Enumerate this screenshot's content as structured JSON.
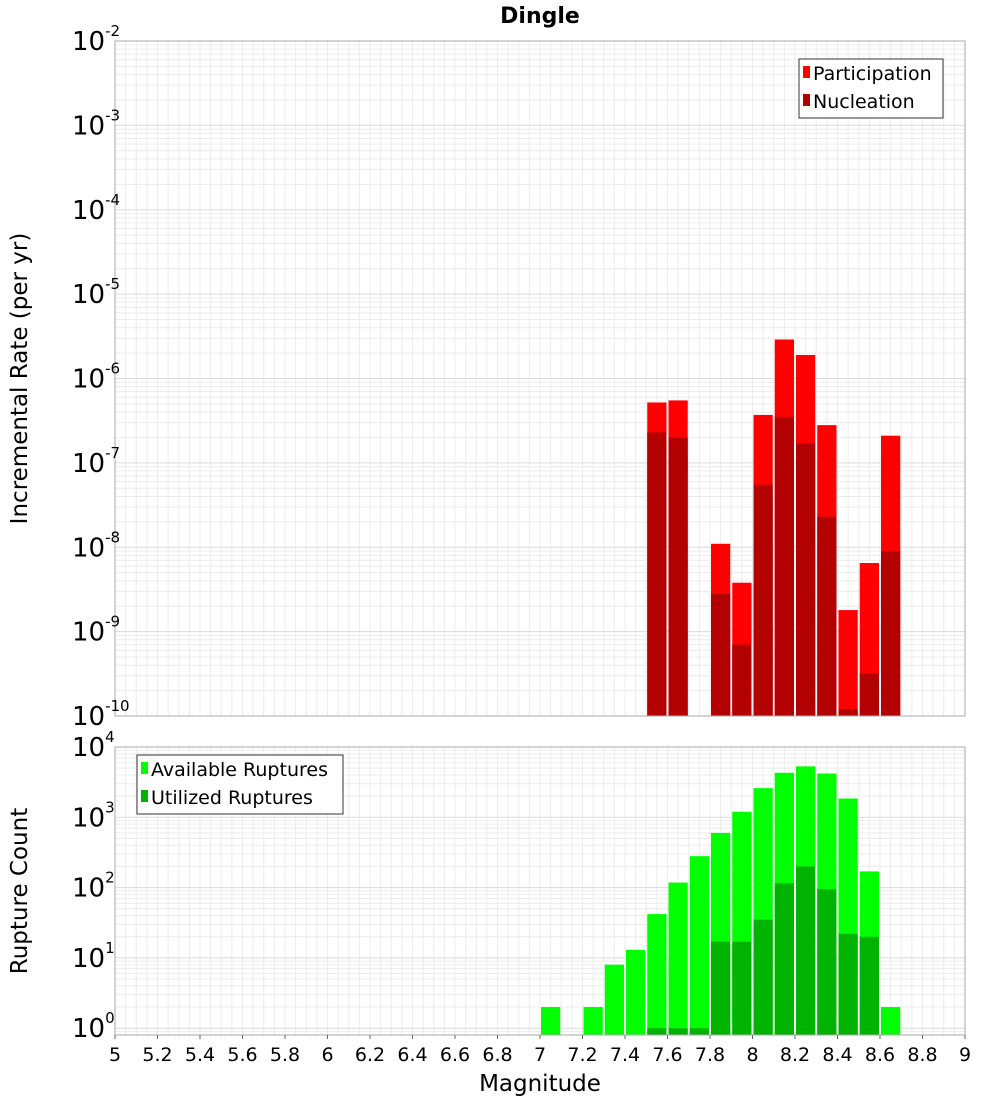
{
  "chart_data": {
    "title": "Dingle",
    "x_axis": {
      "label": "Magnitude",
      "range": [
        5,
        9
      ],
      "tick_labels": [
        "5",
        "5.2",
        "5.4",
        "5.6",
        "5.8",
        "6",
        "6.2",
        "6.4",
        "6.6",
        "6.8",
        "7",
        "7.2",
        "7.4",
        "7.6",
        "7.8",
        "8",
        "8.2",
        "8.4",
        "8.6",
        "8.8",
        "9"
      ]
    },
    "panels": [
      {
        "type": "bar",
        "y_scale": "log",
        "ylabel": "Incremental Rate (per yr)",
        "ylim": [
          1e-10,
          0.01
        ],
        "y_tick_base": "10",
        "y_tick_exponents": [
          "-10",
          "-9",
          "-8",
          "-7",
          "-6",
          "-5",
          "-4",
          "-3",
          "-2"
        ],
        "grid": true,
        "legend_position": "top-right",
        "x": [
          7.55,
          7.65,
          7.85,
          7.95,
          8.05,
          8.15,
          8.25,
          8.35,
          8.45,
          8.55,
          8.65
        ],
        "series": [
          {
            "name": "Participation",
            "color": "#ff0000",
            "values": [
              5.2e-07,
              5.5e-07,
              1.1e-08,
              3.8e-09,
              3.7e-07,
              2.9e-06,
              1.9e-06,
              2.8e-07,
              1.8e-09,
              6.5e-09,
              2.1e-07
            ]
          },
          {
            "name": "Nucleation",
            "color": "#b30000",
            "values": [
              2.3e-07,
              2e-07,
              2.8e-09,
              7e-10,
              5.5e-08,
              3.5e-07,
              1.7e-07,
              2.3e-08,
              1.2e-10,
              3.2e-10,
              9e-09
            ]
          }
        ]
      },
      {
        "type": "bar",
        "y_scale": "log",
        "ylabel": "Rupture Count",
        "ylim": [
          0.8,
          10000
        ],
        "y_tick_base": "10",
        "y_tick_exponents": [
          "0",
          "1",
          "2",
          "3",
          "4"
        ],
        "grid": true,
        "legend_position": "top-left",
        "x": [
          7.05,
          7.25,
          7.35,
          7.45,
          7.55,
          7.65,
          7.75,
          7.85,
          7.95,
          8.05,
          8.15,
          8.25,
          8.35,
          8.45,
          8.55,
          8.65
        ],
        "series": [
          {
            "name": "Available Ruptures",
            "color": "#00ff00",
            "values": [
              2,
              2,
              8,
              13,
              42,
              118,
              280,
              600,
              1200,
              2600,
              4300,
              5300,
              4200,
              1850,
              170,
              2
            ]
          },
          {
            "name": "Utilized Ruptures",
            "color": "#00b300",
            "values": [
              0,
              0,
              0,
              0,
              1,
              1,
              1,
              17,
              17,
              35,
              115,
              200,
              95,
              22,
              20,
              0
            ]
          }
        ]
      }
    ]
  }
}
